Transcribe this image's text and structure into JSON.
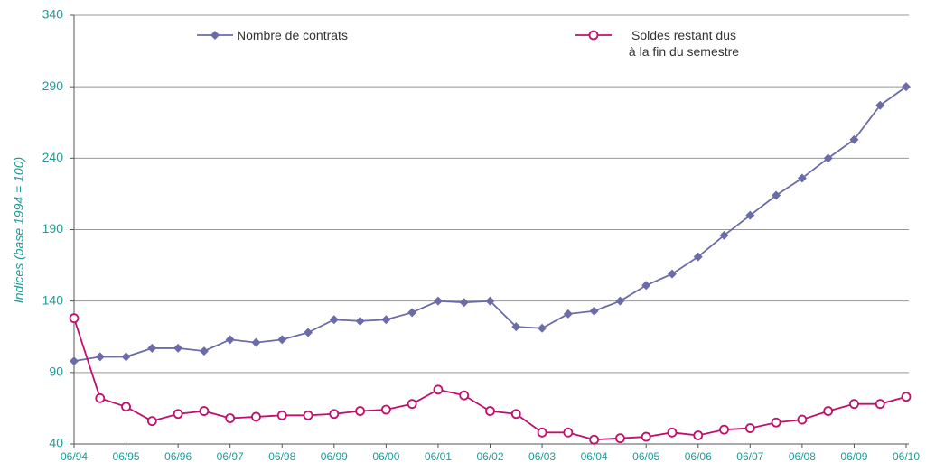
{
  "chart_data": {
    "type": "line",
    "ylabel": "Indices (base 1994 = 100)",
    "categories": [
      "06/94",
      null,
      "06/95",
      null,
      "06/96",
      null,
      "06/97",
      null,
      "06/98",
      null,
      "06/99",
      null,
      "06/00",
      null,
      "06/01",
      null,
      "06/02",
      null,
      "06/03",
      null,
      "06/04",
      null,
      "06/05",
      null,
      "06/06",
      null,
      "06/07",
      null,
      "06/08",
      null,
      "06/09",
      null,
      "06/10"
    ],
    "series": [
      {
        "name": "Nombre de contrats",
        "color": "#6b6ba8",
        "marker": "diamond",
        "values": [
          98,
          101,
          101,
          107,
          107,
          105,
          113,
          111,
          113,
          118,
          127,
          126,
          127,
          132,
          140,
          139,
          140,
          122,
          121,
          131,
          133,
          140,
          151,
          159,
          171,
          186,
          200,
          214,
          226,
          240,
          253,
          277,
          290
        ]
      },
      {
        "name": "Soldes restant dus\nà la fin du semestre",
        "color": "#c0106e",
        "marker": "circle",
        "values": [
          128,
          72,
          66,
          56,
          61,
          63,
          58,
          59,
          60,
          60,
          61,
          63,
          64,
          68,
          78,
          74,
          63,
          61,
          48,
          48,
          43,
          44,
          45,
          48,
          46,
          50,
          51,
          55,
          57,
          63,
          68,
          68,
          73
        ]
      }
    ],
    "ylim": [
      40,
      340
    ],
    "yticks": [
      40,
      90,
      140,
      190,
      240,
      290,
      340
    ],
    "grid": true
  }
}
